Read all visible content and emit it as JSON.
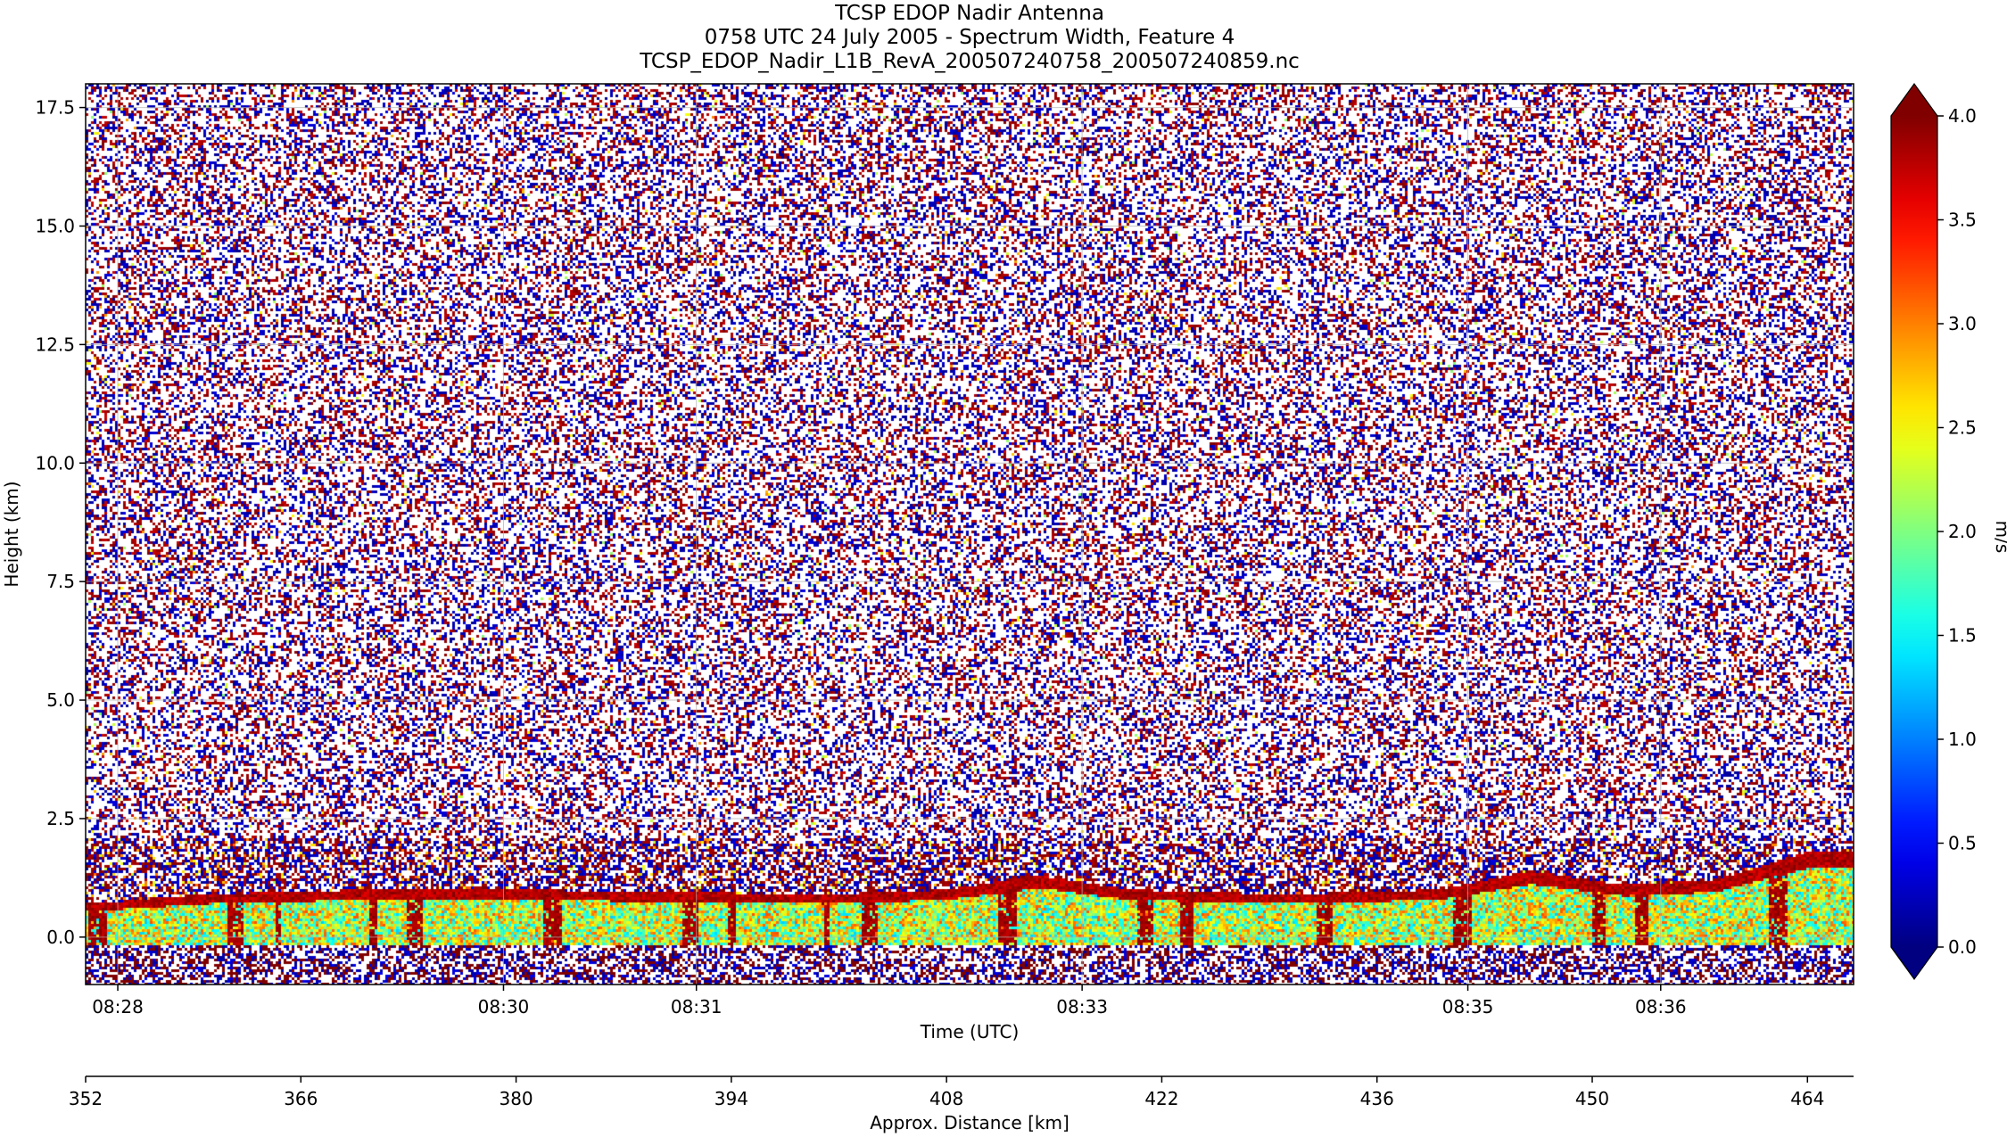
{
  "title": {
    "line1": "TCSP EDOP Nadir Antenna",
    "line2": "0758 UTC 24 July 2005 - Spectrum Width, Feature 4",
    "line3": "TCSP_EDOP_Nadir_L1B_RevA_200507240758_200507240859.nc"
  },
  "chart_data": {
    "type": "heatmap",
    "description_of_field": "Radar spectrum width vs time and height; noise above ~2 km, coherent echoes below ~2 km",
    "xlabel": "Time (UTC)",
    "x_time_ticks": [
      "08:28",
      "08:30",
      "08:31",
      "08:33",
      "08:35",
      "08:36"
    ],
    "x_time_range": [
      "08:27:50",
      "08:37:00"
    ],
    "ylabel": "Height (km)",
    "ylim": [
      -1.0,
      18.0
    ],
    "y_ticks": [
      "0.0",
      "2.5",
      "5.0",
      "7.5",
      "10.0",
      "12.5",
      "15.0",
      "17.5"
    ],
    "y_tick_values": [
      0.0,
      2.5,
      5.0,
      7.5,
      10.0,
      12.5,
      15.0,
      17.5
    ],
    "secondary_xlabel": "Approx. Distance [km]",
    "distance_range": [
      352,
      467
    ],
    "distance_ticks": [
      352,
      366,
      380,
      394,
      408,
      422,
      436,
      450,
      464
    ],
    "colorbar": {
      "label": "m/s",
      "range": [
        0.0,
        4.0
      ],
      "ticks": [
        "0.0",
        "0.5",
        "1.0",
        "1.5",
        "2.0",
        "2.5",
        "3.0",
        "3.5",
        "4.0"
      ],
      "tick_values": [
        0.0,
        0.5,
        1.0,
        1.5,
        2.0,
        2.5,
        3.0,
        3.5,
        4.0
      ],
      "colormap": "jet",
      "extend": "both"
    },
    "echo_layer": {
      "base_km": -0.2,
      "top_km_by_distance": [
        [
          352,
          0.7
        ],
        [
          360,
          0.9
        ],
        [
          370,
          1.0
        ],
        [
          380,
          1.0
        ],
        [
          390,
          0.95
        ],
        [
          400,
          0.9
        ],
        [
          408,
          1.0
        ],
        [
          414,
          1.3
        ],
        [
          420,
          1.0
        ],
        [
          430,
          0.9
        ],
        [
          440,
          1.0
        ],
        [
          446,
          1.4
        ],
        [
          452,
          1.1
        ],
        [
          458,
          1.2
        ],
        [
          464,
          1.8
        ],
        [
          467,
          1.8
        ]
      ],
      "noise_band_top_km": 2.1
    },
    "grid": true,
    "colors": {
      "background": "#ffffff",
      "grid": "#b0b0b0"
    }
  }
}
